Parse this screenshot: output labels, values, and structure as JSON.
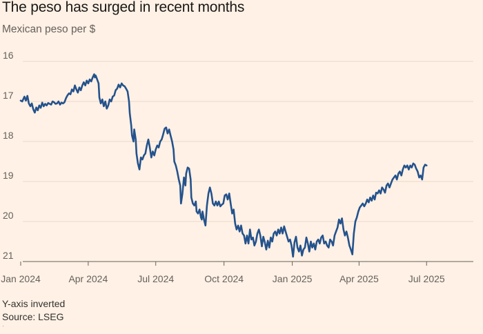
{
  "chart_data": {
    "type": "line",
    "title": "The peso has surged in recent months",
    "subtitle": "Mexican peso per $",
    "ylabel": "Mexican peso per $",
    "ylim": [
      16,
      21
    ],
    "y_inverted": true,
    "yticks": [
      "16",
      "17",
      "18",
      "19",
      "20",
      "21"
    ],
    "xticks": [
      "Jan 2024",
      "Apr 2024",
      "Jul 2024",
      "Oct 2024",
      "Jan 2025",
      "Apr 2025",
      "Jul 2025"
    ],
    "x_start": "2024-01-01",
    "x_end": "2025-08-20",
    "series": [
      {
        "name": "Mexican peso per $",
        "color": "#24528c",
        "points": [
          [
            0,
            16.98
          ],
          [
            2,
            17.0
          ],
          [
            5,
            16.88
          ],
          [
            7,
            16.98
          ],
          [
            9,
            16.86
          ],
          [
            11,
            17.05
          ],
          [
            13,
            17.12
          ],
          [
            15,
            17.05
          ],
          [
            17,
            17.2
          ],
          [
            19,
            17.28
          ],
          [
            21,
            17.15
          ],
          [
            23,
            17.22
          ],
          [
            25,
            17.1
          ],
          [
            27,
            17.16
          ],
          [
            29,
            17.03
          ],
          [
            31,
            17.12
          ],
          [
            33,
            17.06
          ],
          [
            35,
            17.1
          ],
          [
            37,
            17.04
          ],
          [
            39,
            17.06
          ],
          [
            41,
            17.08
          ],
          [
            43,
            17.0
          ],
          [
            45,
            17.02
          ],
          [
            47,
            17.06
          ],
          [
            49,
            17.05
          ],
          [
            51,
            17.0
          ],
          [
            53,
            17.08
          ],
          [
            55,
            17.03
          ],
          [
            57,
            17.05
          ],
          [
            59,
            17.02
          ],
          [
            61,
            16.92
          ],
          [
            63,
            16.85
          ],
          [
            65,
            16.8
          ],
          [
            67,
            16.82
          ],
          [
            69,
            16.7
          ],
          [
            71,
            16.75
          ],
          [
            73,
            16.6
          ],
          [
            75,
            16.7
          ],
          [
            77,
            16.78
          ],
          [
            79,
            16.65
          ],
          [
            81,
            16.72
          ],
          [
            83,
            16.6
          ],
          [
            85,
            16.52
          ],
          [
            87,
            16.6
          ],
          [
            89,
            16.48
          ],
          [
            91,
            16.55
          ],
          [
            93,
            16.45
          ],
          [
            95,
            16.5
          ],
          [
            97,
            16.4
          ],
          [
            99,
            16.32
          ],
          [
            100,
            16.4
          ],
          [
            101,
            16.35
          ],
          [
            103,
            16.45
          ],
          [
            105,
            16.55
          ],
          [
            106,
            16.9
          ],
          [
            108,
            17.05
          ],
          [
            110,
            16.95
          ],
          [
            112,
            17.12
          ],
          [
            114,
            17.0
          ],
          [
            116,
            17.18
          ],
          [
            118,
            17.1
          ],
          [
            120,
            16.95
          ],
          [
            122,
            17.0
          ],
          [
            124,
            16.88
          ],
          [
            126,
            16.85
          ],
          [
            128,
            16.72
          ],
          [
            130,
            16.68
          ],
          [
            132,
            16.58
          ],
          [
            134,
            16.65
          ],
          [
            136,
            16.55
          ],
          [
            138,
            16.6
          ],
          [
            140,
            16.62
          ],
          [
            142,
            16.68
          ],
          [
            144,
            16.75
          ],
          [
            146,
            17.0
          ],
          [
            147,
            17.3
          ],
          [
            149,
            17.6
          ],
          [
            150,
            17.85
          ],
          [
            152,
            18.0
          ],
          [
            153,
            17.7
          ],
          [
            155,
            17.95
          ],
          [
            156,
            18.3
          ],
          [
            158,
            18.55
          ],
          [
            160,
            18.7
          ],
          [
            162,
            18.4
          ],
          [
            164,
            18.45
          ],
          [
            166,
            18.35
          ],
          [
            168,
            18.3
          ],
          [
            170,
            18.1
          ],
          [
            172,
            17.95
          ],
          [
            174,
            18.15
          ],
          [
            176,
            18.4
          ],
          [
            178,
            18.25
          ],
          [
            180,
            18.35
          ],
          [
            182,
            18.2
          ],
          [
            184,
            18.1
          ],
          [
            186,
            18.15
          ],
          [
            188,
            18.0
          ],
          [
            190,
            17.95
          ],
          [
            192,
            17.82
          ],
          [
            194,
            17.68
          ],
          [
            196,
            17.65
          ],
          [
            198,
            17.8
          ],
          [
            200,
            17.7
          ],
          [
            202,
            17.85
          ],
          [
            204,
            18.0
          ],
          [
            206,
            18.2
          ],
          [
            207,
            18.5
          ],
          [
            209,
            18.6
          ],
          [
            211,
            18.75
          ],
          [
            213,
            18.95
          ],
          [
            215,
            19.1
          ],
          [
            216,
            19.55
          ],
          [
            218,
            19.3
          ],
          [
            220,
            18.9
          ],
          [
            222,
            19.1
          ],
          [
            223,
            18.8
          ],
          [
            225,
            18.65
          ],
          [
            227,
            18.68
          ],
          [
            229,
            18.95
          ],
          [
            230,
            19.4
          ],
          [
            232,
            19.55
          ],
          [
            234,
            19.6
          ],
          [
            236,
            19.5
          ],
          [
            237,
            19.75
          ],
          [
            239,
            19.8
          ],
          [
            241,
            19.7
          ],
          [
            243,
            19.9
          ],
          [
            244,
            19.95
          ],
          [
            245,
            19.75
          ],
          [
            247,
            19.95
          ],
          [
            249,
            20.1
          ],
          [
            251,
            19.6
          ],
          [
            253,
            19.3
          ],
          [
            255,
            19.15
          ],
          [
            257,
            19.3
          ],
          [
            259,
            19.55
          ],
          [
            261,
            19.6
          ],
          [
            263,
            19.5
          ],
          [
            265,
            19.6
          ],
          [
            267,
            19.5
          ],
          [
            269,
            19.62
          ],
          [
            271,
            19.58
          ],
          [
            273,
            19.55
          ],
          [
            275,
            19.35
          ],
          [
            277,
            19.32
          ],
          [
            279,
            19.45
          ],
          [
            281,
            19.3
          ],
          [
            283,
            19.55
          ],
          [
            285,
            19.8
          ],
          [
            287,
            19.7
          ],
          [
            289,
            20.05
          ],
          [
            291,
            20.2
          ],
          [
            293,
            20.1
          ],
          [
            295,
            20.25
          ],
          [
            297,
            20.1
          ],
          [
            299,
            20.3
          ],
          [
            301,
            20.35
          ],
          [
            303,
            20.55
          ],
          [
            305,
            20.35
          ],
          [
            307,
            20.55
          ],
          [
            309,
            20.2
          ],
          [
            311,
            20.45
          ],
          [
            313,
            20.4
          ],
          [
            315,
            20.6
          ],
          [
            317,
            20.5
          ],
          [
            319,
            20.3
          ],
          [
            321,
            20.2
          ],
          [
            323,
            20.35
          ],
          [
            325,
            20.62
          ],
          [
            327,
            20.38
          ],
          [
            329,
            20.52
          ],
          [
            331,
            20.7
          ],
          [
            333,
            20.48
          ],
          [
            335,
            20.65
          ],
          [
            337,
            20.4
          ],
          [
            339,
            20.5
          ],
          [
            341,
            20.3
          ],
          [
            343,
            20.25
          ],
          [
            345,
            20.35
          ],
          [
            347,
            20.2
          ],
          [
            349,
            20.3
          ],
          [
            351,
            20.15
          ],
          [
            353,
            20.3
          ],
          [
            355,
            20.12
          ],
          [
            357,
            20.25
          ],
          [
            359,
            20.38
          ],
          [
            361,
            20.5
          ],
          [
            363,
            20.45
          ],
          [
            365,
            20.6
          ],
          [
            367,
            20.88
          ],
          [
            369,
            20.52
          ],
          [
            371,
            20.38
          ],
          [
            373,
            20.65
          ],
          [
            375,
            20.75
          ],
          [
            377,
            20.6
          ],
          [
            379,
            20.85
          ],
          [
            381,
            20.7
          ],
          [
            383,
            20.65
          ],
          [
            385,
            20.4
          ],
          [
            387,
            20.55
          ],
          [
            389,
            20.75
          ],
          [
            391,
            20.5
          ],
          [
            393,
            20.65
          ],
          [
            395,
            20.55
          ],
          [
            397,
            20.7
          ],
          [
            399,
            20.5
          ],
          [
            401,
            20.45
          ],
          [
            403,
            20.55
          ],
          [
            405,
            20.4
          ],
          [
            407,
            20.35
          ],
          [
            409,
            20.55
          ],
          [
            411,
            20.5
          ],
          [
            413,
            20.6
          ],
          [
            415,
            20.65
          ],
          [
            417,
            20.45
          ],
          [
            419,
            20.5
          ],
          [
            421,
            20.6
          ],
          [
            423,
            20.35
          ],
          [
            425,
            20.25
          ],
          [
            427,
            20.15
          ],
          [
            429,
            19.95
          ],
          [
            431,
            20.05
          ],
          [
            433,
            19.92
          ],
          [
            435,
            20.2
          ],
          [
            437,
            20.35
          ],
          [
            439,
            20.25
          ],
          [
            441,
            20.4
          ],
          [
            443,
            20.6
          ],
          [
            445,
            20.7
          ],
          [
            447,
            20.82
          ],
          [
            449,
            20.3
          ],
          [
            451,
            20.0
          ],
          [
            453,
            19.9
          ],
          [
            455,
            19.75
          ],
          [
            457,
            19.65
          ],
          [
            459,
            19.6
          ],
          [
            461,
            19.55
          ],
          [
            463,
            19.62
          ],
          [
            465,
            19.55
          ],
          [
            467,
            19.45
          ],
          [
            469,
            19.52
          ],
          [
            471,
            19.4
          ],
          [
            473,
            19.48
          ],
          [
            475,
            19.35
          ],
          [
            477,
            19.45
          ],
          [
            479,
            19.28
          ],
          [
            481,
            19.3
          ],
          [
            483,
            19.22
          ],
          [
            485,
            19.3
          ],
          [
            487,
            19.15
          ],
          [
            489,
            19.2
          ],
          [
            491,
            19.28
          ],
          [
            493,
            19.1
          ],
          [
            495,
            19.05
          ],
          [
            497,
            19.15
          ],
          [
            499,
            19.05
          ],
          [
            501,
            18.95
          ],
          [
            503,
            18.9
          ],
          [
            505,
            18.85
          ],
          [
            507,
            18.95
          ],
          [
            509,
            18.8
          ],
          [
            511,
            18.75
          ],
          [
            513,
            18.85
          ],
          [
            515,
            18.7
          ],
          [
            517,
            18.6
          ],
          [
            519,
            18.65
          ],
          [
            521,
            18.6
          ],
          [
            523,
            18.7
          ],
          [
            525,
            18.6
          ],
          [
            527,
            18.65
          ],
          [
            529,
            18.55
          ],
          [
            531,
            18.58
          ],
          [
            533,
            18.68
          ],
          [
            535,
            18.75
          ],
          [
            537,
            18.9
          ],
          [
            539,
            18.85
          ],
          [
            541,
            18.95
          ],
          [
            543,
            18.65
          ],
          [
            545,
            18.58
          ],
          [
            547,
            18.6
          ]
        ]
      }
    ]
  },
  "notes": {
    "inverted": "Y-axis inverted",
    "source": "Source: LSEG"
  }
}
